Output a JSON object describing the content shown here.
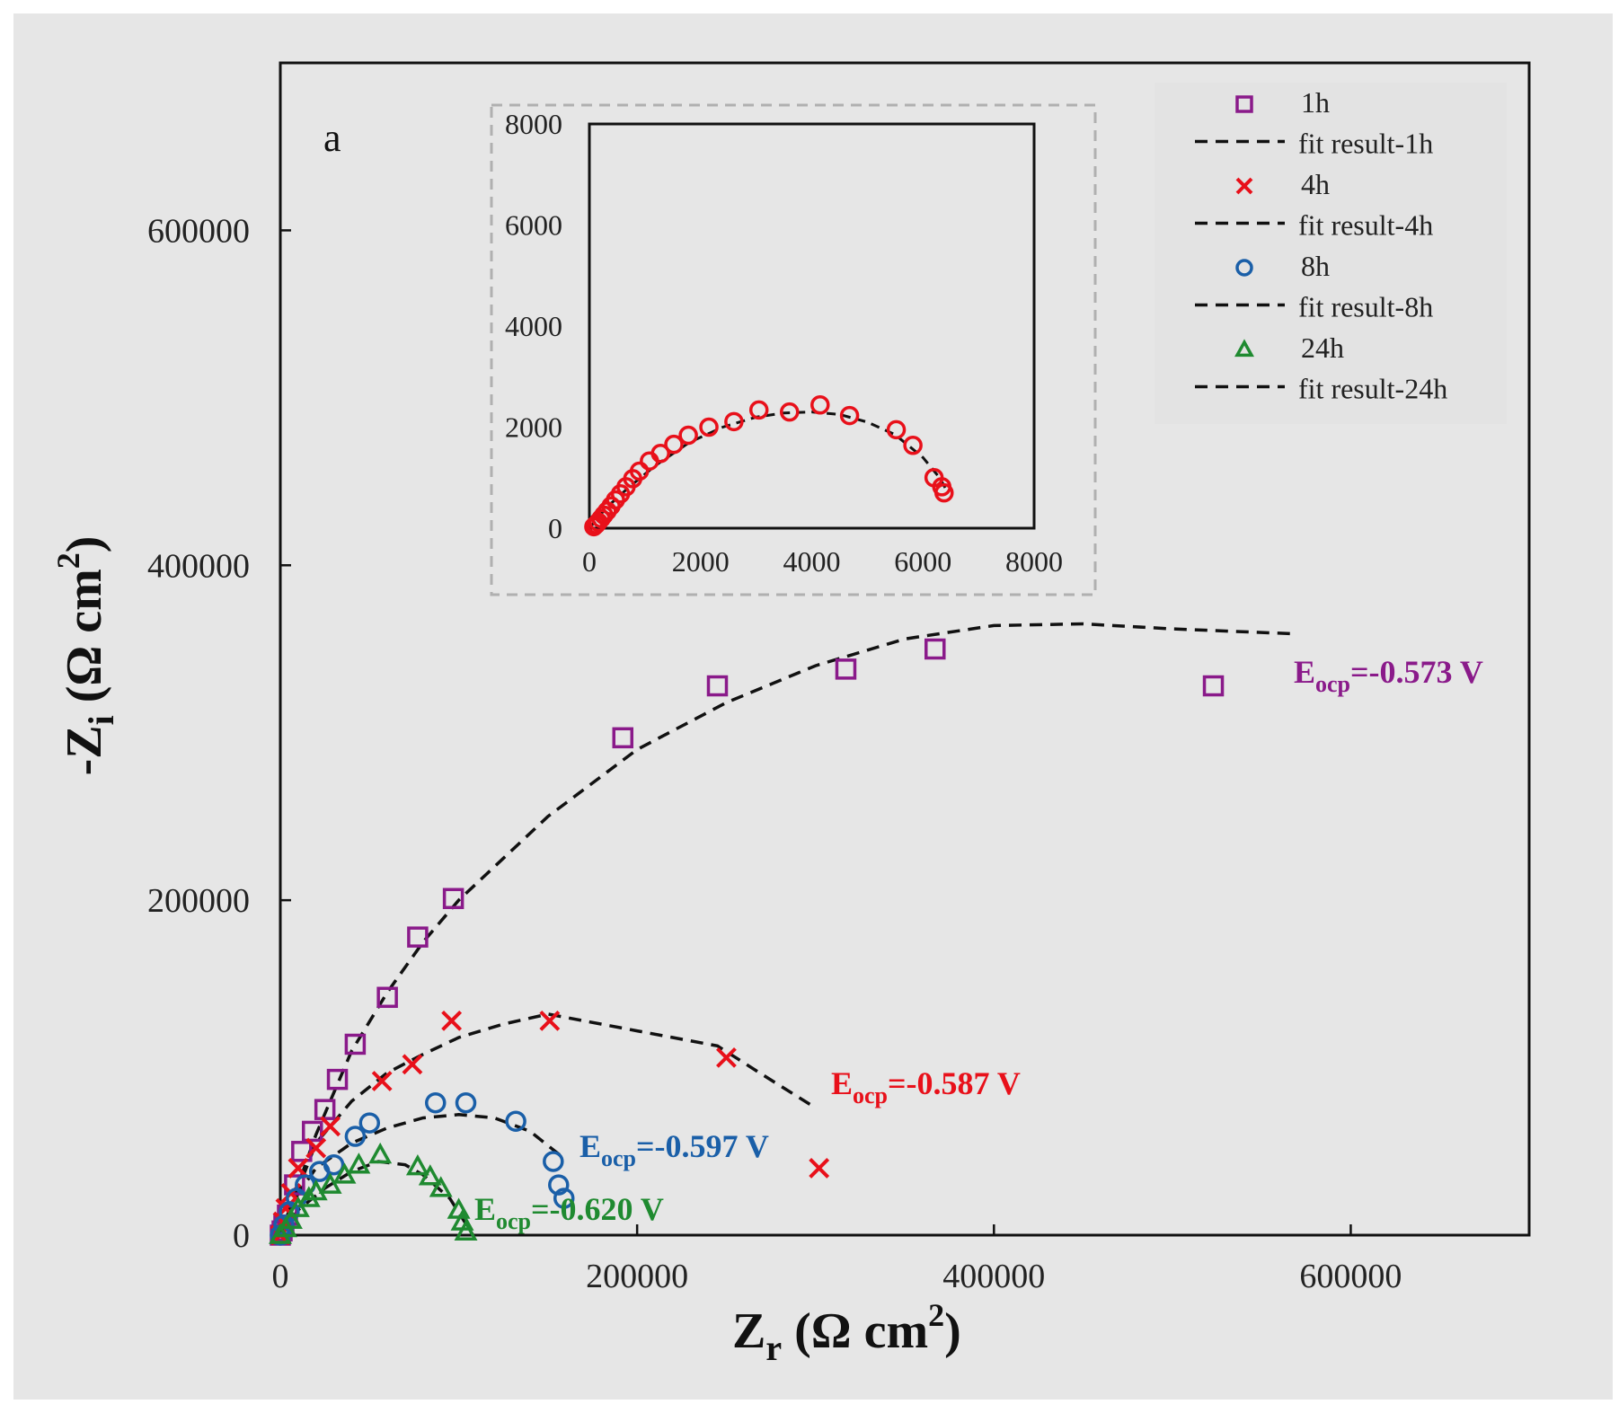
{
  "chart_data": {
    "type": "scatter",
    "panel_label": "a",
    "xlabel": {
      "main": "Z",
      "sub": "r",
      "rest": " (Ω cm",
      "sup": "2",
      "close": ")"
    },
    "ylabel": {
      "main": "-Z",
      "sub": "i",
      "rest": " (Ω cm",
      "sup": "2",
      "close": ")"
    },
    "xlim": [
      0,
      700000
    ],
    "ylim": [
      0,
      700000
    ],
    "x_ticks": [
      0,
      200000,
      400000,
      600000
    ],
    "y_ticks": [
      0,
      200000,
      400000,
      600000
    ],
    "series": [
      {
        "name": "1h",
        "marker": "square",
        "color": "#8a1a8a",
        "points": [
          [
            0,
            0
          ],
          [
            1000,
            2500
          ],
          [
            2000,
            6000
          ],
          [
            4000,
            12000
          ],
          [
            8000,
            30000
          ],
          [
            12000,
            50000
          ],
          [
            18000,
            62000
          ],
          [
            25000,
            75000
          ],
          [
            32000,
            93000
          ],
          [
            42000,
            114000
          ],
          [
            60000,
            142000
          ],
          [
            77000,
            178000
          ],
          [
            97000,
            201000
          ],
          [
            192000,
            297000
          ],
          [
            245000,
            328000
          ],
          [
            317000,
            338000
          ],
          [
            367000,
            350000
          ],
          [
            523000,
            328000
          ]
        ]
      },
      {
        "name": "4h",
        "marker": "x",
        "color": "#e8101a",
        "points": [
          [
            0,
            0
          ],
          [
            1500,
            8000
          ],
          [
            3000,
            16000
          ],
          [
            6000,
            25000
          ],
          [
            10000,
            40000
          ],
          [
            20000,
            52000
          ],
          [
            28000,
            65000
          ],
          [
            57000,
            92000
          ],
          [
            74000,
            102000
          ],
          [
            96000,
            128000
          ],
          [
            151000,
            128000
          ],
          [
            250000,
            106000
          ],
          [
            302000,
            40000
          ]
        ]
      },
      {
        "name": "8h",
        "marker": "circle",
        "color": "#1a5fa8",
        "points": [
          [
            0,
            0
          ],
          [
            2000,
            6000
          ],
          [
            5000,
            14000
          ],
          [
            9000,
            22000
          ],
          [
            14000,
            30000
          ],
          [
            22000,
            38000
          ],
          [
            30000,
            42000
          ],
          [
            42000,
            59000
          ],
          [
            50000,
            67000
          ],
          [
            87000,
            79000
          ],
          [
            104000,
            79000
          ],
          [
            132000,
            68000
          ],
          [
            153000,
            44000
          ],
          [
            156000,
            30000
          ],
          [
            159000,
            22000
          ]
        ]
      },
      {
        "name": "24h",
        "marker": "triangle",
        "color": "#1f8a30",
        "points": [
          [
            0,
            0
          ],
          [
            3000,
            4000
          ],
          [
            6000,
            9000
          ],
          [
            10000,
            16000
          ],
          [
            16000,
            22000
          ],
          [
            20000,
            26000
          ],
          [
            28000,
            30000
          ],
          [
            36000,
            36000
          ],
          [
            44000,
            42000
          ],
          [
            56000,
            48000
          ],
          [
            77000,
            41000
          ],
          [
            84000,
            35000
          ],
          [
            90000,
            28000
          ],
          [
            100000,
            15000
          ],
          [
            102000,
            8000
          ],
          [
            104000,
            2000
          ]
        ]
      }
    ],
    "fits": [
      {
        "name": "fit result-1h",
        "points": [
          [
            0,
            0
          ],
          [
            20000,
            60000
          ],
          [
            40000,
            110000
          ],
          [
            60000,
            145000
          ],
          [
            80000,
            175000
          ],
          [
            100000,
            200000
          ],
          [
            150000,
            250000
          ],
          [
            200000,
            290000
          ],
          [
            250000,
            318000
          ],
          [
            300000,
            340000
          ],
          [
            350000,
            356000
          ],
          [
            400000,
            364000
          ],
          [
            450000,
            365000
          ],
          [
            500000,
            362000
          ],
          [
            570000,
            359000
          ]
        ]
      },
      {
        "name": "fit result-4h",
        "points": [
          [
            0,
            0
          ],
          [
            20000,
            55000
          ],
          [
            40000,
            80000
          ],
          [
            60000,
            97000
          ],
          [
            80000,
            108000
          ],
          [
            100000,
            118000
          ],
          [
            125000,
            126000
          ],
          [
            150000,
            132000
          ],
          [
            200000,
            122000
          ],
          [
            245000,
            113000
          ],
          [
            270000,
            96000
          ],
          [
            300000,
            76000
          ]
        ]
      },
      {
        "name": "fit result-8h",
        "points": [
          [
            0,
            0
          ],
          [
            10000,
            25000
          ],
          [
            20000,
            40000
          ],
          [
            40000,
            55000
          ],
          [
            60000,
            64000
          ],
          [
            80000,
            70000
          ],
          [
            100000,
            72000
          ],
          [
            120000,
            70000
          ],
          [
            140000,
            62000
          ],
          [
            160000,
            45000
          ]
        ]
      },
      {
        "name": "fit result-24h",
        "points": [
          [
            0,
            0
          ],
          [
            10000,
            15000
          ],
          [
            25000,
            28000
          ],
          [
            40000,
            38000
          ],
          [
            55000,
            44000
          ],
          [
            70000,
            42000
          ],
          [
            80000,
            36000
          ],
          [
            95000,
            22000
          ],
          [
            108000,
            0
          ]
        ]
      }
    ],
    "legend": {
      "position": "top-right",
      "entries": [
        {
          "label": "1h",
          "kind": "marker",
          "marker": "square",
          "color": "#8a1a8a"
        },
        {
          "label": "fit result-1h",
          "kind": "line"
        },
        {
          "label": "4h",
          "kind": "marker",
          "marker": "x",
          "color": "#e8101a"
        },
        {
          "label": "fit result-4h",
          "kind": "line"
        },
        {
          "label": "8h",
          "kind": "marker",
          "marker": "circle",
          "color": "#1a5fa8"
        },
        {
          "label": "fit result-8h",
          "kind": "line"
        },
        {
          "label": "24h",
          "kind": "marker",
          "marker": "triangle",
          "color": "#1f8a30"
        },
        {
          "label": "fit result-24h",
          "kind": "line"
        }
      ]
    },
    "annotations": [
      {
        "E": "E",
        "sub": "ocp",
        "value": "=-0.573 V",
        "color": "#8a1a8a",
        "series": "1h"
      },
      {
        "E": "E",
        "sub": "ocp",
        "value": "=-0.587 V",
        "color": "#e8101a",
        "series": "4h"
      },
      {
        "E": "E",
        "sub": "ocp",
        "value": "=-0.597 V",
        "color": "#1a5fa8",
        "series": "8h"
      },
      {
        "E": "E",
        "sub": "ocp",
        "value": "=-0.620 V",
        "color": "#1f8a30",
        "series": "24h"
      }
    ],
    "inset": {
      "xlim": [
        0,
        8000
      ],
      "ylim": [
        0,
        8000
      ],
      "x_ticks": [
        0,
        2000,
        4000,
        6000,
        8000
      ],
      "y_ticks": [
        0,
        2000,
        4000,
        6000,
        8000
      ],
      "marker": "circle",
      "color": "#e8101a",
      "points": [
        [
          80,
          30
        ],
        [
          120,
          70
        ],
        [
          160,
          120
        ],
        [
          210,
          190
        ],
        [
          260,
          260
        ],
        [
          320,
          340
        ],
        [
          390,
          440
        ],
        [
          470,
          560
        ],
        [
          560,
          680
        ],
        [
          660,
          820
        ],
        [
          780,
          980
        ],
        [
          900,
          1130
        ],
        [
          1080,
          1330
        ],
        [
          1280,
          1480
        ],
        [
          1520,
          1660
        ],
        [
          1780,
          1840
        ],
        [
          2150,
          2000
        ],
        [
          2600,
          2110
        ],
        [
          3050,
          2340
        ],
        [
          3600,
          2300
        ],
        [
          4150,
          2440
        ],
        [
          4680,
          2230
        ],
        [
          5520,
          1950
        ],
        [
          5820,
          1640
        ],
        [
          6200,
          1000
        ],
        [
          6340,
          820
        ],
        [
          6380,
          700
        ]
      ],
      "fit": [
        [
          0,
          0
        ],
        [
          300,
          400
        ],
        [
          700,
          800
        ],
        [
          1200,
          1250
        ],
        [
          1800,
          1700
        ],
        [
          2400,
          2000
        ],
        [
          3000,
          2200
        ],
        [
          3500,
          2280
        ],
        [
          4000,
          2300
        ],
        [
          4500,
          2250
        ],
        [
          5000,
          2100
        ],
        [
          5500,
          1850
        ],
        [
          6000,
          1400
        ],
        [
          6300,
          1000
        ],
        [
          6400,
          800
        ]
      ]
    }
  }
}
